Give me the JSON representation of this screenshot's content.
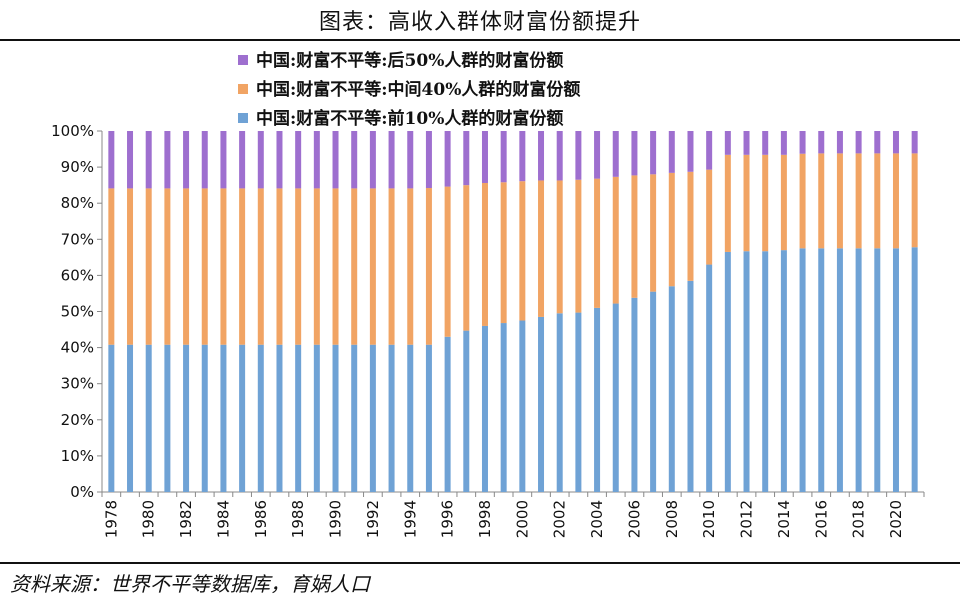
{
  "title": "图表：高收入群体财富份额提升",
  "source": "资料来源：世界不平等数据库，育娲人口",
  "colors": {
    "bottom50": "#9e6fcf",
    "middle40": "#f1a464",
    "top10": "#6fa2d5"
  },
  "chart_data": {
    "type": "bar",
    "stacked": true,
    "categories": [
      1978,
      1979,
      1980,
      1981,
      1982,
      1983,
      1984,
      1985,
      1986,
      1987,
      1988,
      1989,
      1990,
      1991,
      1992,
      1993,
      1994,
      1995,
      1996,
      1997,
      1998,
      1999,
      2000,
      2001,
      2002,
      2003,
      2004,
      2005,
      2006,
      2007,
      2008,
      2009,
      2010,
      2011,
      2012,
      2013,
      2014,
      2015,
      2016,
      2017,
      2018,
      2019,
      2020,
      2021
    ],
    "x_tick_labels": [
      "1978",
      "1980",
      "1982",
      "1984",
      "1986",
      "1988",
      "1990",
      "1992",
      "1994",
      "1996",
      "1998",
      "2000",
      "2002",
      "2004",
      "2006",
      "2008",
      "2010",
      "2012",
      "2014",
      "2016",
      "2018",
      "2020"
    ],
    "y_tick_labels": [
      "0%",
      "10%",
      "20%",
      "30%",
      "40%",
      "50%",
      "60%",
      "70%",
      "80%",
      "90%",
      "100%"
    ],
    "ylim": [
      0,
      100
    ],
    "legend_position": "top",
    "series": [
      {
        "name": "中国:财富不平等:前10%人群的财富份额",
        "values": [
          40.8,
          40.8,
          40.8,
          40.8,
          40.8,
          40.8,
          40.8,
          40.8,
          40.8,
          40.8,
          40.8,
          40.8,
          40.8,
          40.8,
          40.8,
          40.8,
          40.8,
          40.8,
          43.0,
          44.7,
          46.0,
          46.8,
          47.5,
          48.5,
          49.5,
          49.7,
          51.0,
          52.2,
          53.8,
          55.5,
          57.0,
          58.5,
          63.0,
          66.5,
          66.7,
          66.7,
          67.0,
          67.5,
          67.5,
          67.5,
          67.5,
          67.5,
          67.5,
          67.8
        ]
      },
      {
        "name": "中国:财富不平等:中间40%人群的财富份额",
        "values": [
          43.3,
          43.3,
          43.3,
          43.3,
          43.3,
          43.3,
          43.3,
          43.3,
          43.3,
          43.3,
          43.3,
          43.3,
          43.3,
          43.3,
          43.3,
          43.3,
          43.3,
          43.4,
          41.6,
          40.3,
          39.6,
          39.0,
          38.6,
          37.8,
          36.8,
          36.8,
          35.8,
          35.1,
          33.9,
          32.5,
          31.4,
          30.2,
          26.3,
          26.9,
          26.7,
          26.7,
          26.4,
          26.2,
          26.3,
          26.3,
          26.3,
          26.3,
          26.3,
          26.0
        ]
      },
      {
        "name": "中国:财富不平等:后50%人群的财富份额",
        "values": [
          15.9,
          15.9,
          15.9,
          15.9,
          15.9,
          15.9,
          15.9,
          15.9,
          15.9,
          15.9,
          15.9,
          15.9,
          15.9,
          15.9,
          15.9,
          15.9,
          15.9,
          15.8,
          15.4,
          15.0,
          14.4,
          14.2,
          13.9,
          13.7,
          13.7,
          13.5,
          13.2,
          12.7,
          12.3,
          12.0,
          11.6,
          11.3,
          10.7,
          6.6,
          6.6,
          6.6,
          6.6,
          6.3,
          6.2,
          6.2,
          6.2,
          6.2,
          6.2,
          6.2
        ]
      }
    ]
  }
}
